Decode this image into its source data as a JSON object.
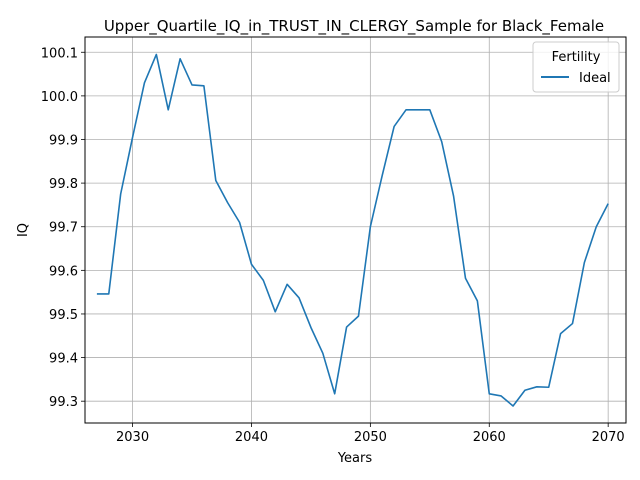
{
  "chart_data": {
    "type": "line",
    "title": "Upper_Quartile_IQ_in_TRUST_IN_CLERGY_Sample for Black_Female",
    "xlabel": "Years",
    "ylabel": "IQ",
    "xlim": [
      2026,
      2071.5
    ],
    "ylim": [
      99.25,
      100.135
    ],
    "xticks": [
      2030,
      2040,
      2050,
      2060,
      2070
    ],
    "yticks": [
      99.3,
      99.4,
      99.5,
      99.6,
      99.7,
      99.8,
      99.9,
      100.0,
      100.1
    ],
    "ytick_labels": [
      "99.3",
      "99.4",
      "99.5",
      "99.6",
      "99.7",
      "99.8",
      "99.9",
      "100.0",
      "100.1"
    ],
    "grid": true,
    "legend": {
      "title": "Fertility",
      "placement": "top-right"
    },
    "series": [
      {
        "name": "Ideal",
        "color": "#1f77b4",
        "x": [
          2027,
          2028,
          2029,
          2030,
          2031,
          2032,
          2033,
          2034,
          2035,
          2036,
          2037,
          2038,
          2039,
          2040,
          2041,
          2042,
          2043,
          2044,
          2045,
          2046,
          2047,
          2048,
          2049,
          2050,
          2051,
          2052,
          2053,
          2054,
          2055,
          2056,
          2057,
          2058,
          2059,
          2060,
          2061,
          2062,
          2063,
          2064,
          2065,
          2066,
          2067,
          2068,
          2069,
          2070
        ],
        "y": [
          99.546,
          99.546,
          99.775,
          99.905,
          100.03,
          100.095,
          99.968,
          100.085,
          100.025,
          100.023,
          99.806,
          99.755,
          99.71,
          99.614,
          99.577,
          99.505,
          99.568,
          99.537,
          99.469,
          99.41,
          99.317,
          99.47,
          99.495,
          99.7,
          99.818,
          99.93,
          99.968,
          99.968,
          99.968,
          99.895,
          99.77,
          99.582,
          99.53,
          99.317,
          99.312,
          99.289,
          99.325,
          99.333,
          99.332,
          99.455,
          99.478,
          99.618,
          99.7,
          99.753
        ]
      }
    ]
  }
}
